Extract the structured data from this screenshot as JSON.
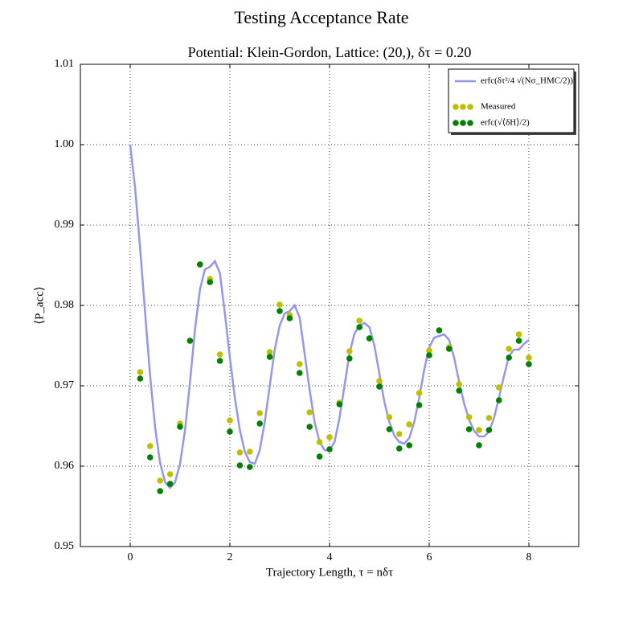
{
  "chart_data": {
    "type": "line",
    "title": "Testing Acceptance Rate",
    "subtitle": "Potential: Klein-Gordon, Lattice: (20,), δτ = 0.20",
    "x_label": "Trajectory Length, τ = nδτ",
    "y_label": "⟨P_acc⟩",
    "xlim": [
      -1,
      9
    ],
    "ylim": [
      0.95,
      1.01
    ],
    "xticks": [
      0,
      2,
      4,
      6,
      8
    ],
    "yticks": [
      0.95,
      0.96,
      0.97,
      0.98,
      0.99,
      {
        "value": 1,
        "label": "1.00"
      },
      1.01
    ],
    "grid": true,
    "legend": "upper right",
    "series": [
      {
        "name": "erfc(δτ²/4 √(Nσ_HMC/2))",
        "type": "line",
        "color": "#9696f0",
        "x": [
          0,
          0.1,
          0.2,
          0.3,
          0.4,
          0.5,
          0.6,
          0.7,
          0.8,
          0.9,
          1,
          1.1,
          1.2,
          1.3,
          1.4,
          1.5,
          1.6,
          1.7,
          1.8,
          1.9,
          2,
          2.1,
          2.2,
          2.3,
          2.4,
          2.5,
          2.6,
          2.7,
          2.8,
          2.9,
          3,
          3.1,
          3.2,
          3.3,
          3.4,
          3.5,
          3.6,
          3.7,
          3.8,
          3.9,
          4,
          4.1,
          4.2,
          4.3,
          4.4,
          4.5,
          4.6,
          4.7,
          4.8,
          4.9,
          5,
          5.1,
          5.2,
          5.3,
          5.4,
          5.5,
          5.6,
          5.7,
          5.8,
          5.9,
          6,
          6.1,
          6.2,
          6.3,
          6.4,
          6.5,
          6.6,
          6.7,
          6.8,
          6.9,
          7,
          7.1,
          7.2,
          7.3,
          7.4,
          7.5,
          7.6,
          7.7,
          7.8,
          7.9,
          8
        ],
        "values": [
          1.0,
          0.9945,
          0.987,
          0.979,
          0.9712,
          0.9648,
          0.9604,
          0.958,
          0.9573,
          0.958,
          0.9603,
          0.9645,
          0.9705,
          0.977,
          0.982,
          0.9845,
          0.9848,
          0.9855,
          0.984,
          0.979,
          0.9735,
          0.9685,
          0.9645,
          0.9618,
          0.9605,
          0.9603,
          0.962,
          0.9655,
          0.97,
          0.9745,
          0.9775,
          0.979,
          0.9793,
          0.98,
          0.9785,
          0.974,
          0.9695,
          0.9655,
          0.963,
          0.962,
          0.962,
          0.963,
          0.966,
          0.97,
          0.974,
          0.9765,
          0.9775,
          0.9778,
          0.9773,
          0.975,
          0.9715,
          0.968,
          0.9655,
          0.9638,
          0.963,
          0.9628,
          0.9635,
          0.9655,
          0.9685,
          0.972,
          0.9748,
          0.976,
          0.9762,
          0.9764,
          0.9757,
          0.9735,
          0.9705,
          0.9678,
          0.9658,
          0.9644,
          0.9637,
          0.9637,
          0.9643,
          0.966,
          0.9685,
          0.9712,
          0.9737,
          0.9745,
          0.9745,
          0.9752,
          0.9757
        ]
      },
      {
        "name": "Measured",
        "type": "scatter",
        "color": "#bfbf00",
        "x": [
          0.2,
          0.4,
          0.6,
          0.8,
          1,
          1.2,
          1.4,
          1.6,
          1.8,
          2,
          2.2,
          2.4,
          2.6,
          2.8,
          3,
          3.2,
          3.4,
          3.6,
          3.8,
          4,
          4.2,
          4.4,
          4.6,
          4.8,
          5,
          5.2,
          5.4,
          5.6,
          5.8,
          6,
          6.2,
          6.4,
          6.6,
          6.8,
          7,
          7.2,
          7.4,
          7.6,
          7.8,
          8
        ],
        "values": [
          0.9717,
          0.9625,
          0.9582,
          0.959,
          0.9653,
          0.9756,
          0.9851,
          0.9833,
          0.9739,
          0.9657,
          0.9617,
          0.9618,
          0.9666,
          0.9742,
          0.9801,
          0.9788,
          0.9727,
          0.9667,
          0.963,
          0.9636,
          0.9679,
          0.9743,
          0.9781,
          0.9759,
          0.9706,
          0.9661,
          0.964,
          0.9652,
          0.9691,
          0.9744,
          0.9769,
          0.9748,
          0.9702,
          0.9661,
          0.9645,
          0.966,
          0.9698,
          0.9746,
          0.9764,
          0.9735
        ]
      },
      {
        "name": "erfc(√⟨δH⟩/2)",
        "type": "scatter",
        "color": "#008000",
        "x": [
          0.2,
          0.4,
          0.6,
          0.8,
          1,
          1.2,
          1.4,
          1.6,
          1.8,
          2,
          2.2,
          2.4,
          2.6,
          2.8,
          3,
          3.2,
          3.4,
          3.6,
          3.8,
          4,
          4.2,
          4.4,
          4.6,
          4.8,
          5,
          5.2,
          5.4,
          5.6,
          5.8,
          6,
          6.2,
          6.4,
          6.6,
          6.8,
          7,
          7.2,
          7.4,
          7.6,
          7.8,
          8
        ],
        "values": [
          0.9709,
          0.9611,
          0.9569,
          0.9578,
          0.9649,
          0.9756,
          0.9851,
          0.9829,
          0.9731,
          0.9643,
          0.9601,
          0.9599,
          0.9653,
          0.9736,
          0.9793,
          0.9784,
          0.9716,
          0.9649,
          0.9612,
          0.9621,
          0.9677,
          0.9734,
          0.9773,
          0.9759,
          0.9699,
          0.9646,
          0.9622,
          0.9626,
          0.9676,
          0.9738,
          0.9769,
          0.9746,
          0.9694,
          0.9646,
          0.9626,
          0.9645,
          0.9682,
          0.9735,
          0.9756,
          0.9727
        ]
      }
    ]
  }
}
